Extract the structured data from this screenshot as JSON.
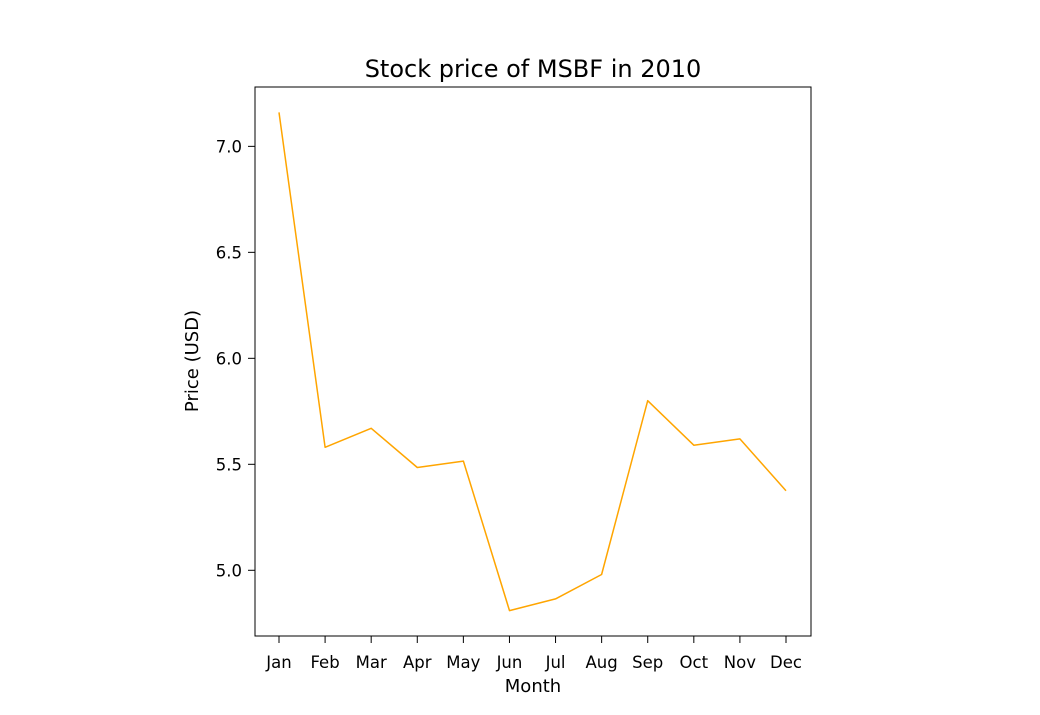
{
  "chart_data": {
    "type": "line",
    "title": "Stock price of MSBF in 2010",
    "xlabel": "Month",
    "ylabel": "Price (USD)",
    "categories": [
      "Jan",
      "Feb",
      "Mar",
      "Apr",
      "May",
      "Jun",
      "Jul",
      "Aug",
      "Sep",
      "Oct",
      "Nov",
      "Dec"
    ],
    "series": [
      {
        "values": [
          7.16,
          5.58,
          5.67,
          5.485,
          5.515,
          4.81,
          4.865,
          4.98,
          5.8,
          5.59,
          5.62,
          5.375
        ],
        "color": "#ffa500"
      }
    ],
    "yticks": [
      5.0,
      5.5,
      6.0,
      6.5,
      7.0
    ],
    "ytick_labels": [
      "5.0",
      "5.5",
      "6.0",
      "6.5",
      "7.0"
    ],
    "ylim": [
      4.69,
      7.28
    ],
    "grid": false,
    "legend": false
  }
}
